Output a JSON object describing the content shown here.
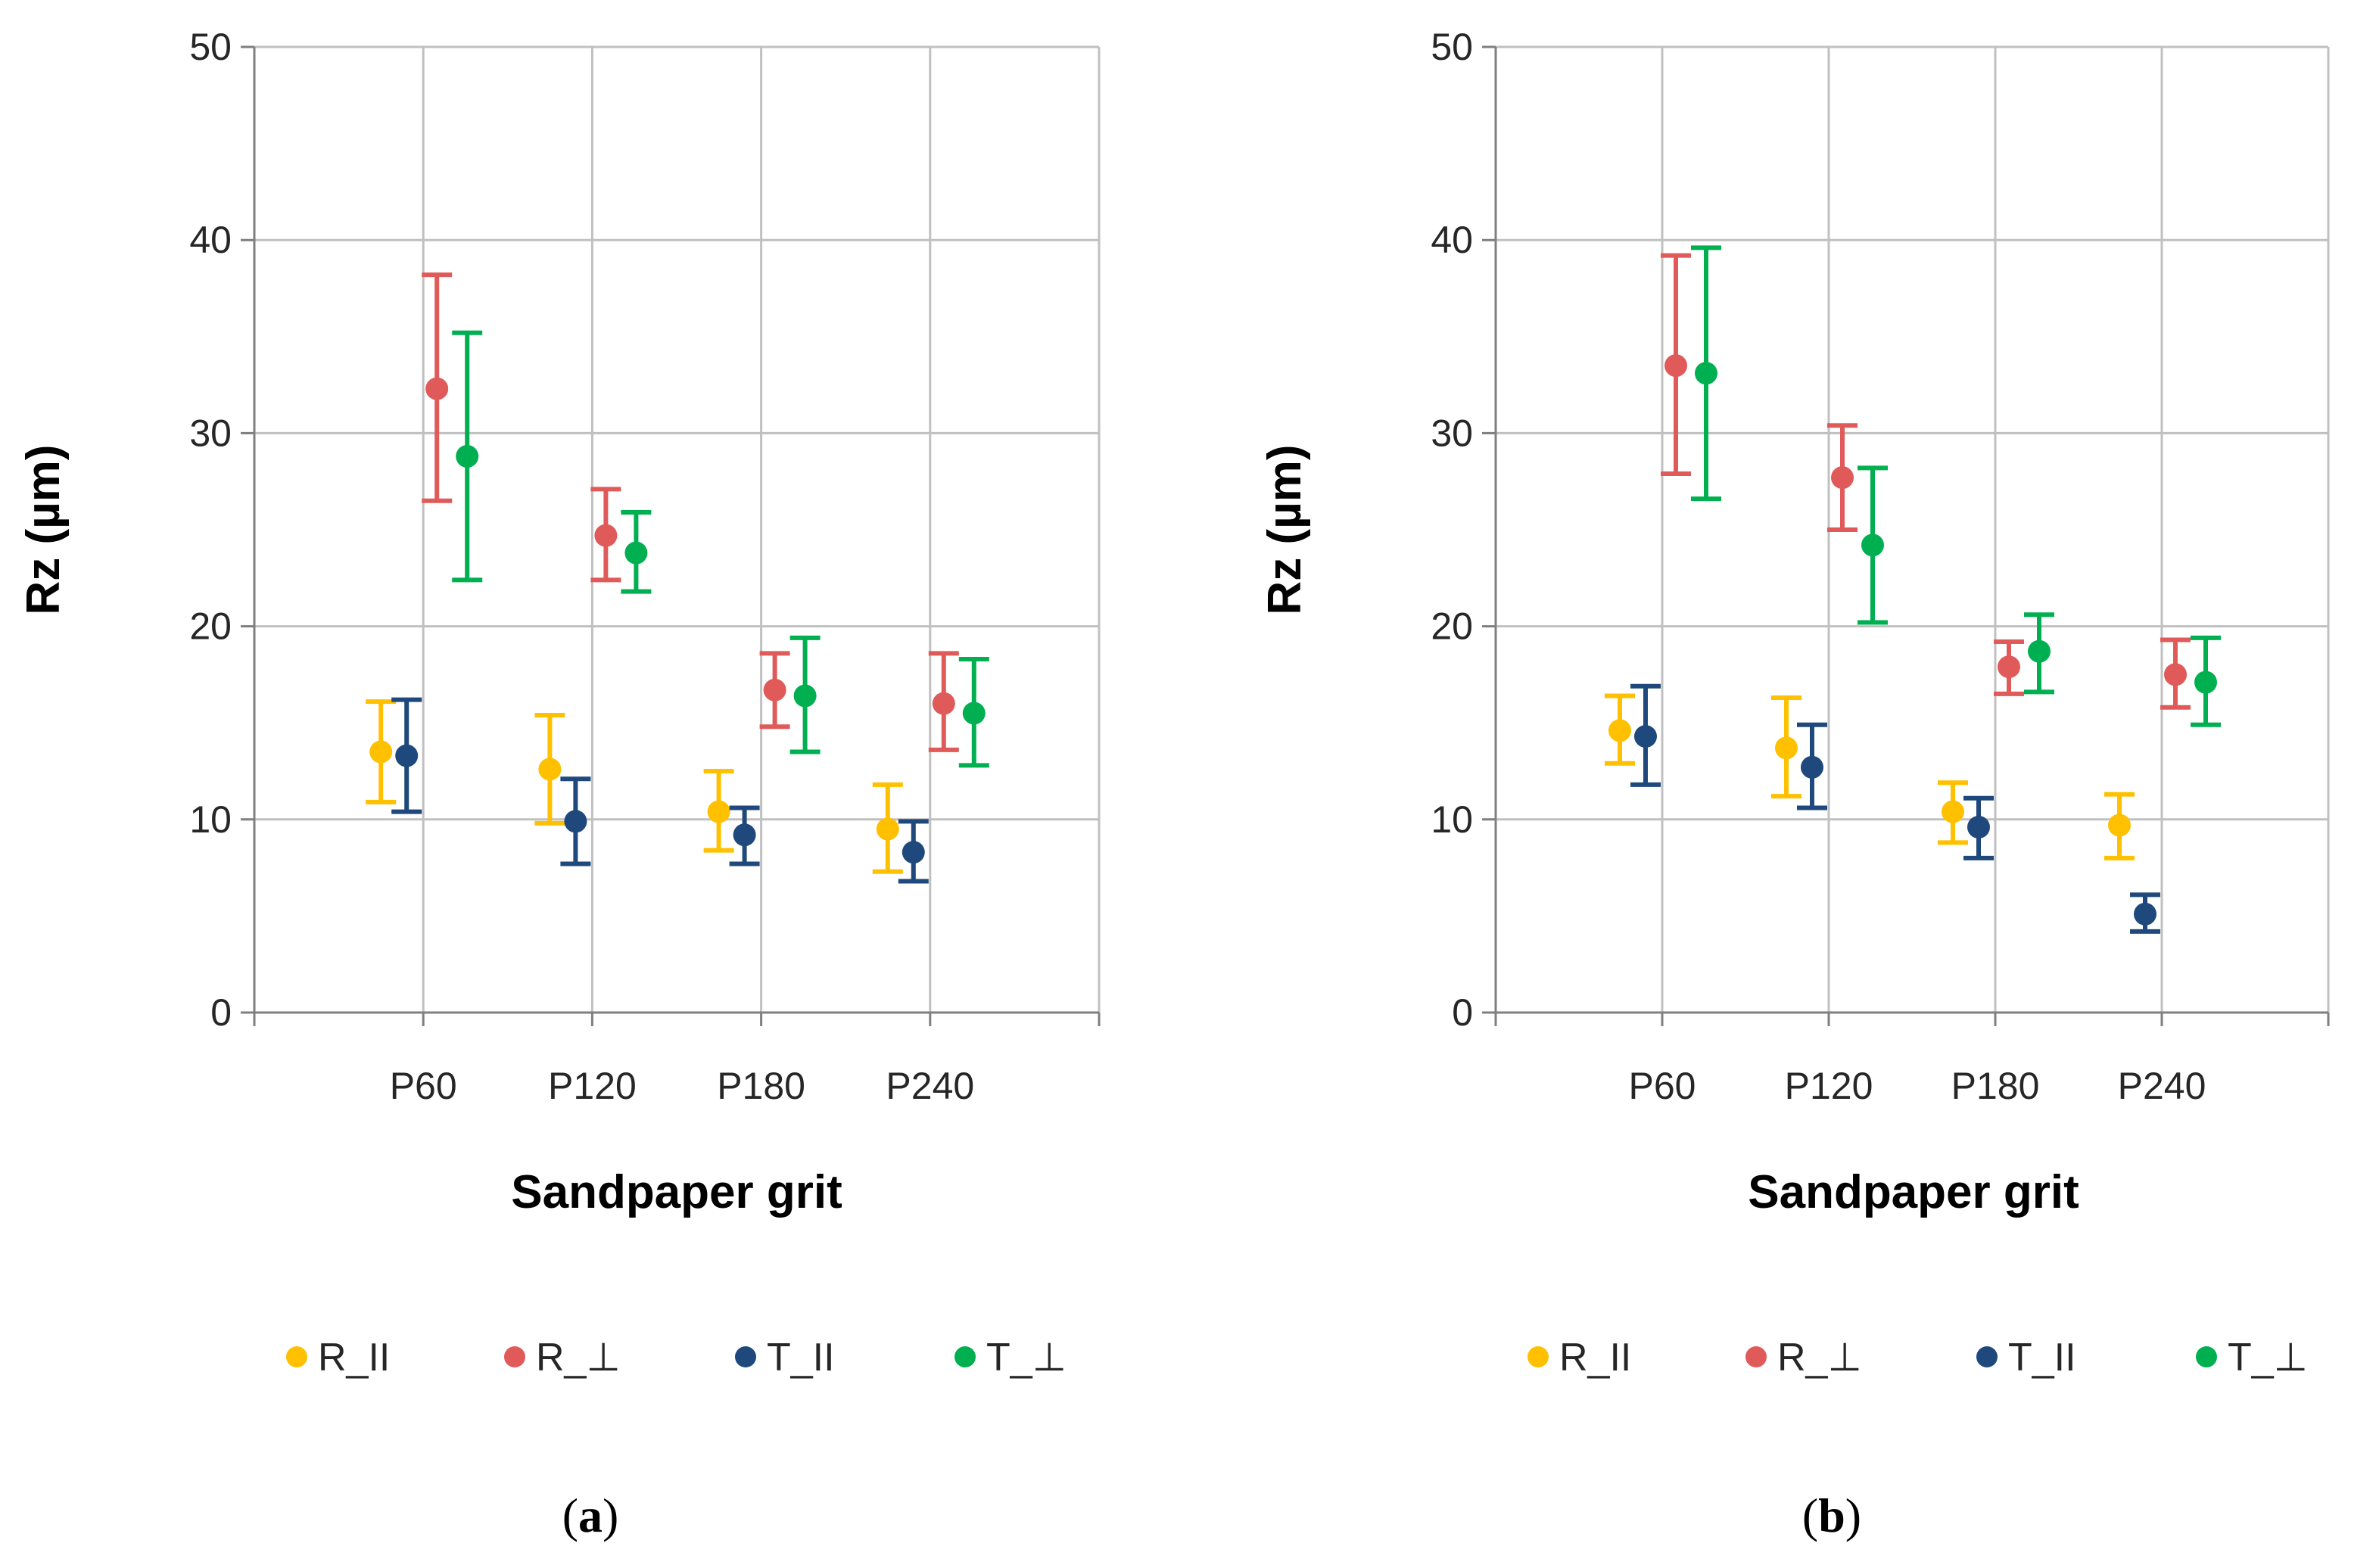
{
  "chart_data": [
    {
      "type": "scatter",
      "title": "",
      "caption_open": "(",
      "caption_letter": "a",
      "caption_close": ")",
      "xlabel": "Sandpaper grit",
      "ylabel": "Rz (µm)",
      "ylim": [
        0,
        50
      ],
      "yticks": [
        "0",
        "10",
        "20",
        "30",
        "40",
        "50"
      ],
      "categories": [
        "P60",
        "P120",
        "P180",
        "P240"
      ],
      "grid": true,
      "legend_position": "bottom",
      "series": [
        {
          "name": "R_II",
          "color": "#ffc000",
          "values": [
            13.5,
            12.6,
            10.4,
            9.5
          ],
          "err_low": [
            10.9,
            9.8,
            8.4,
            7.3
          ],
          "err_high": [
            16.1,
            15.4,
            12.5,
            11.8
          ]
        },
        {
          "name": "R_⊥",
          "color": "#e05a5a",
          "values": [
            32.3,
            24.7,
            16.7,
            16.0
          ],
          "err_low": [
            26.5,
            22.4,
            14.8,
            13.6
          ],
          "err_high": [
            38.2,
            27.1,
            18.6,
            18.6
          ]
        },
        {
          "name": "T_II",
          "color": "#1f497d",
          "values": [
            13.3,
            9.9,
            9.2,
            8.3
          ],
          "err_low": [
            10.4,
            7.7,
            7.7,
            6.8
          ],
          "err_high": [
            16.2,
            12.1,
            10.6,
            9.9
          ]
        },
        {
          "name": "T_⊥",
          "color": "#00b050",
          "values": [
            28.8,
            23.8,
            16.4,
            15.5
          ],
          "err_low": [
            22.4,
            21.8,
            13.5,
            12.8
          ],
          "err_high": [
            35.2,
            25.9,
            19.4,
            18.3
          ]
        }
      ]
    },
    {
      "type": "scatter",
      "title": "",
      "caption_open": "(",
      "caption_letter": "b",
      "caption_close": ")",
      "xlabel": "Sandpaper grit",
      "ylabel": "Rz (µm)",
      "ylim": [
        0,
        50
      ],
      "yticks": [
        "0",
        "10",
        "20",
        "30",
        "40",
        "50"
      ],
      "categories": [
        "P60",
        "P120",
        "P180",
        "P240"
      ],
      "grid": true,
      "legend_position": "bottom",
      "series": [
        {
          "name": "R_II",
          "color": "#ffc000",
          "values": [
            14.6,
            13.7,
            10.4,
            9.7
          ],
          "err_low": [
            12.9,
            11.2,
            8.8,
            8.0
          ],
          "err_high": [
            16.4,
            16.3,
            11.9,
            11.3
          ]
        },
        {
          "name": "R_⊥",
          "color": "#e05a5a",
          "values": [
            33.5,
            27.7,
            17.9,
            17.5
          ],
          "err_low": [
            27.9,
            25.0,
            16.5,
            15.8
          ],
          "err_high": [
            39.2,
            30.4,
            19.2,
            19.3
          ]
        },
        {
          "name": "T_II",
          "color": "#1f497d",
          "values": [
            14.3,
            12.7,
            9.6,
            5.1
          ],
          "err_low": [
            11.8,
            10.6,
            8.0,
            4.2
          ],
          "err_high": [
            16.9,
            14.9,
            11.1,
            6.1
          ]
        },
        {
          "name": "T_⊥",
          "color": "#00b050",
          "values": [
            33.1,
            24.2,
            18.7,
            17.1
          ],
          "err_low": [
            26.6,
            20.2,
            16.6,
            14.9
          ],
          "err_high": [
            39.6,
            28.2,
            20.6,
            19.4
          ]
        }
      ]
    }
  ]
}
